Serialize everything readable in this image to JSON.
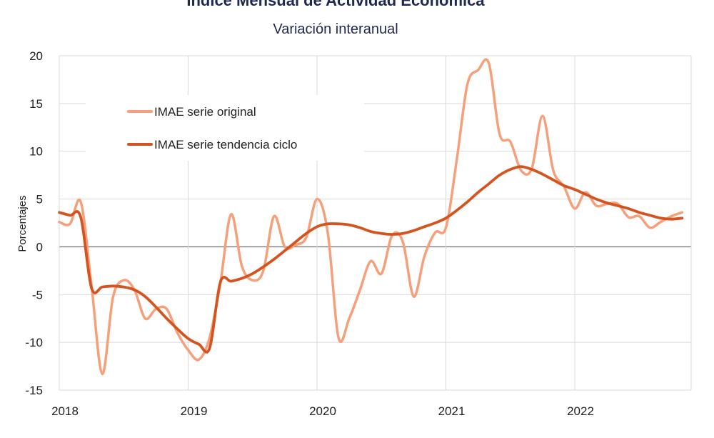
{
  "chart_data": {
    "type": "line",
    "title": "Índice Mensual de  Actividad Económica",
    "subtitle": "Variación interanual",
    "ylabel": "Porcentajes",
    "xlabel": "",
    "ylim": [
      -15,
      20
    ],
    "yticks": [
      "20",
      "15",
      "10",
      "5",
      "0",
      "-5",
      "-10",
      "-15"
    ],
    "xticks": [
      "2018",
      "2019",
      "2020",
      "2021",
      "2022"
    ],
    "grid": true,
    "legend_position": "top-left",
    "series": [
      {
        "name": "IMAE serie original",
        "color": "#f5a07a",
        "values": [
          2.6,
          2.4,
          4.7,
          -4.0,
          -13.3,
          -5.3,
          -3.5,
          -4.5,
          -7.5,
          -6.5,
          -6.5,
          -9.0,
          -10.8,
          -11.8,
          -9.5,
          -3.8,
          3.4,
          -2.0,
          -3.5,
          -2.5,
          3.2,
          0.0,
          0.2,
          1.0,
          5.0,
          1.5,
          -9.5,
          -7.5,
          -4.5,
          -1.5,
          -2.8,
          1.2,
          0.5,
          -5.2,
          -1.0,
          1.5,
          2.0,
          9.0,
          17.0,
          18.5,
          19.2,
          11.8,
          11.0,
          8.0,
          8.2,
          13.7,
          8.0,
          6.3,
          4.0,
          5.7,
          4.3,
          4.5,
          4.5,
          3.1,
          3.2,
          2.0,
          2.6,
          3.2,
          3.6
        ]
      },
      {
        "name": "IMAE serie  tendencia ciclo",
        "color": "#d5531f",
        "values": [
          3.6,
          3.3,
          3.1,
          -4.3,
          -4.2,
          -4.1,
          -4.2,
          -4.5,
          -5.2,
          -6.3,
          -7.5,
          -8.6,
          -9.6,
          -10.2,
          -10.6,
          -3.7,
          -3.6,
          -3.3,
          -2.8,
          -2.1,
          -1.3,
          -0.4,
          0.5,
          1.4,
          2.1,
          2.4,
          2.4,
          2.3,
          2.0,
          1.6,
          1.4,
          1.3,
          1.4,
          1.7,
          2.1,
          2.5,
          3.0,
          3.8,
          4.7,
          5.7,
          6.6,
          7.5,
          8.1,
          8.4,
          8.1,
          7.6,
          7.0,
          6.4,
          6.0,
          5.5,
          5.0,
          4.6,
          4.3,
          4.0,
          3.6,
          3.3,
          3.0,
          2.9,
          3.0
        ]
      }
    ]
  }
}
